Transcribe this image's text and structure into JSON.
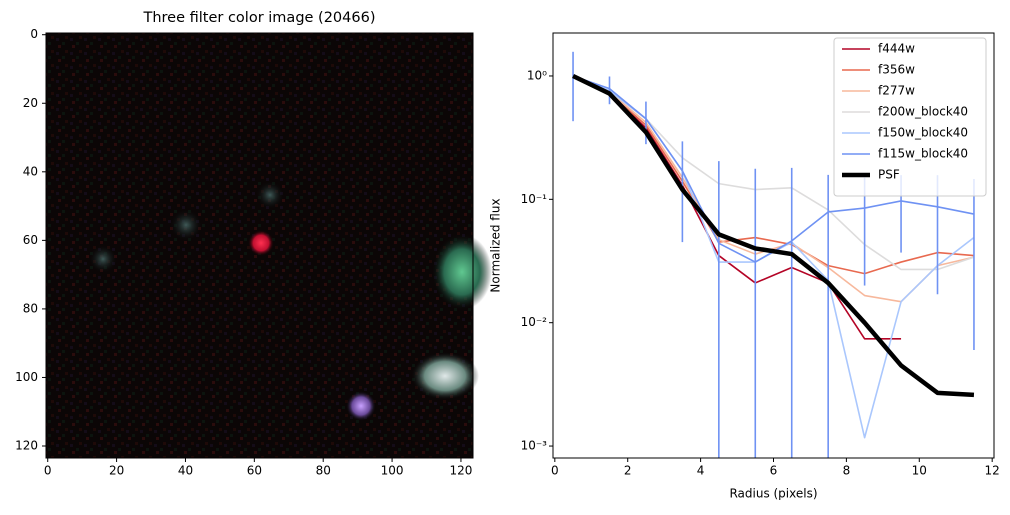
{
  "chart_data": [
    {
      "type": "image",
      "title": "Three filter color image (20466)",
      "xlim": [
        -0.5,
        123.5
      ],
      "ylim": [
        123.5,
        -0.5
      ],
      "xticks": [
        0,
        20,
        40,
        60,
        80,
        100,
        120
      ],
      "yticks": [
        0,
        20,
        40,
        60,
        80,
        100,
        120
      ]
    },
    {
      "type": "line",
      "xlabel": "Radius (pixels)",
      "ylabel": "Normalized flux",
      "log_y": true,
      "legend": "upper right",
      "x": [
        0.5,
        1.5,
        2.5,
        3.5,
        4.5,
        5.5,
        6.5,
        7.5,
        8.5,
        9.5,
        10.5,
        11.5
      ],
      "xlim": [
        -0.05,
        12.05
      ],
      "xticks": [
        0,
        2,
        4,
        6,
        8,
        10,
        12
      ],
      "ylim": [
        0.0008,
        2.23
      ],
      "yticks": [
        {
          "value": 0.001,
          "label": "10⁻³"
        },
        {
          "value": 0.01,
          "label": "10⁻²"
        },
        {
          "value": 0.1,
          "label": "10⁻¹"
        },
        {
          "value": 1,
          "label": "10⁰"
        }
      ],
      "series": [
        {
          "name": "f444w",
          "color": "#b40426",
          "values": [
            1.0,
            0.72,
            0.38,
            0.13,
            0.035,
            0.021,
            0.028,
            0.021,
            0.0074,
            0.0074,
            null,
            null
          ]
        },
        {
          "name": "f356w",
          "color": "#e8694f",
          "values": [
            1.0,
            0.72,
            0.4,
            0.14,
            0.045,
            0.049,
            0.043,
            0.029,
            0.025,
            0.031,
            0.037,
            0.035
          ]
        },
        {
          "name": "f277w",
          "color": "#f7b89c",
          "values": [
            1.0,
            0.74,
            0.42,
            0.15,
            0.047,
            0.036,
            0.044,
            0.028,
            0.0166,
            0.0148,
            0.029,
            0.034
          ]
        },
        {
          "name": "f200w_block40",
          "color": "#dddcdc",
          "values": [
            1.0,
            0.75,
            0.45,
            0.217,
            0.134,
            0.12,
            0.124,
            0.082,
            0.043,
            0.027,
            0.027,
            0.034
          ]
        },
        {
          "name": "f150w_block40",
          "color": "#aac7fd",
          "values": [
            1.0,
            0.76,
            0.45,
            0.17,
            0.031,
            0.031,
            0.045,
            0.022,
            0.00117,
            0.0148,
            0.029,
            0.049
          ]
        },
        {
          "name": "f115w_block40",
          "color": "#6f92f3",
          "values": [
            1.0,
            0.79,
            0.45,
            0.17,
            0.044,
            0.031,
            0.046,
            0.079,
            0.085,
            0.097,
            0.087,
            0.076
          ],
          "errors": [
            0.57,
            0.2,
            0.17,
            0.125,
            0.16,
            0.146,
            0.134,
            0.079,
            0.065,
            0.06,
            0.07,
            0.07
          ]
        },
        {
          "name": "PSF",
          "color": "#000000",
          "values": [
            1.0,
            0.72,
            0.35,
            0.12,
            0.052,
            0.04,
            0.036,
            0.021,
            0.01,
            0.0045,
            0.0027,
            0.0026
          ]
        }
      ]
    }
  ]
}
